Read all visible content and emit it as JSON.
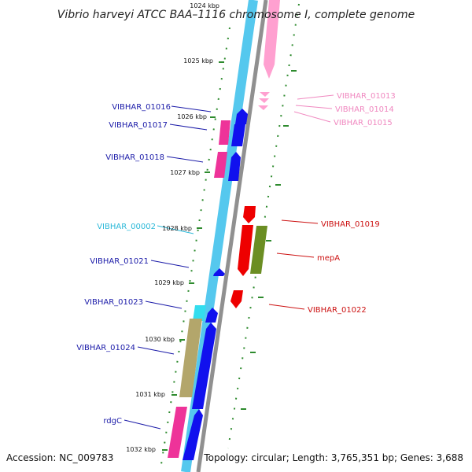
{
  "title": "Vibrio harveyi ATCC BAA–1116 chromosome I, complete genome",
  "footer": {
    "accession": "Accession: NC_009783",
    "topology": "Topology: circular; Length: 3,765,351 bp; Genes: 3,688"
  },
  "colors": {
    "outer_track": "#55c8ee",
    "backbone": "#909090",
    "tick_dots": "#2e8b2e",
    "blue_label": "#1a1aa8",
    "cyan_label": "#2ab8d8",
    "pink_label": "#f088c0",
    "red_label": "#cc1111"
  },
  "kbp_labels": [
    "1024 kbp",
    "1025 kbp",
    "1026 kbp",
    "1027 kbp",
    "1028 kbp",
    "1029 kbp",
    "1030 kbp",
    "1031 kbp",
    "1032 kbp"
  ],
  "gene_labels": [
    {
      "text": "VIBHAR_01016",
      "color": "#1a1aa8"
    },
    {
      "text": "VIBHAR_01017",
      "color": "#1a1aa8"
    },
    {
      "text": "VIBHAR_01018",
      "color": "#1a1aa8"
    },
    {
      "text": "VIBHAR_00002",
      "color": "#2ab8d8"
    },
    {
      "text": "VIBHAR_01021",
      "color": "#1a1aa8"
    },
    {
      "text": "VIBHAR_01023",
      "color": "#1a1aa8"
    },
    {
      "text": "VIBHAR_01024",
      "color": "#1a1aa8"
    },
    {
      "text": "rdgC",
      "color": "#1a1aa8"
    },
    {
      "text": "VIBHAR_01013",
      "color": "#f088c0"
    },
    {
      "text": "VIBHAR_01014",
      "color": "#f088c0"
    },
    {
      "text": "VIBHAR_01015",
      "color": "#f088c0"
    },
    {
      "text": "VIBHAR_01019",
      "color": "#cc1111"
    },
    {
      "text": "mepA",
      "color": "#cc1111"
    },
    {
      "text": "VIBHAR_01022",
      "color": "#cc1111"
    }
  ]
}
